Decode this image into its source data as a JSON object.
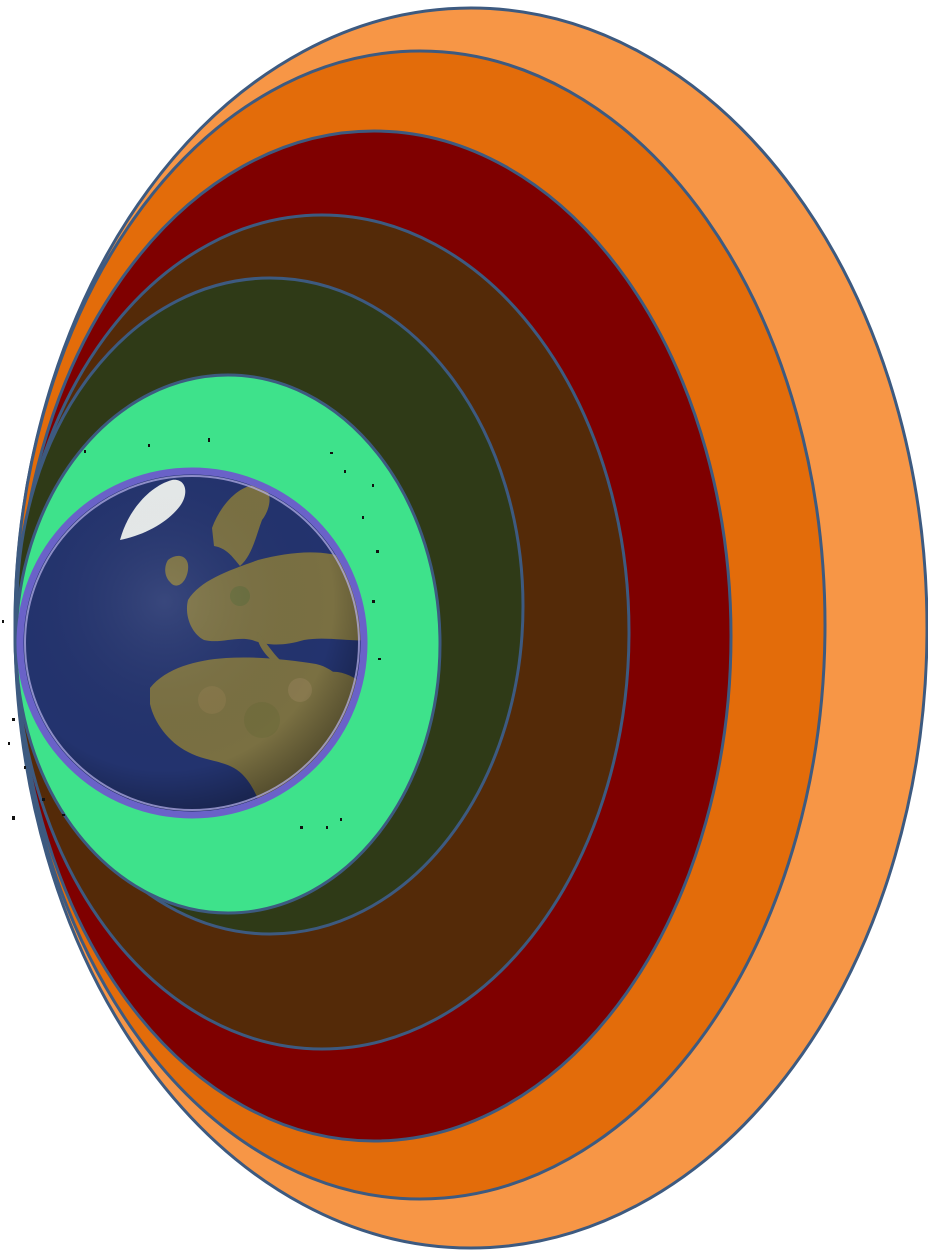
{
  "diagram": {
    "type": "nested-layers",
    "outline_color": "#3d5a80",
    "layers": [
      {
        "name": "layer-1",
        "color": "#f79646"
      },
      {
        "name": "layer-2",
        "color": "#e36c0a"
      },
      {
        "name": "layer-3",
        "color": "#7f0000"
      },
      {
        "name": "layer-4",
        "color": "#542a08"
      },
      {
        "name": "layer-5",
        "color": "#2f3a17"
      },
      {
        "name": "layer-6",
        "color": "#3ee28b"
      }
    ],
    "core": {
      "name": "earth",
      "ocean_color": "#23336e",
      "land_color": "#7a7042",
      "rim_color": "#6a62c8"
    }
  }
}
